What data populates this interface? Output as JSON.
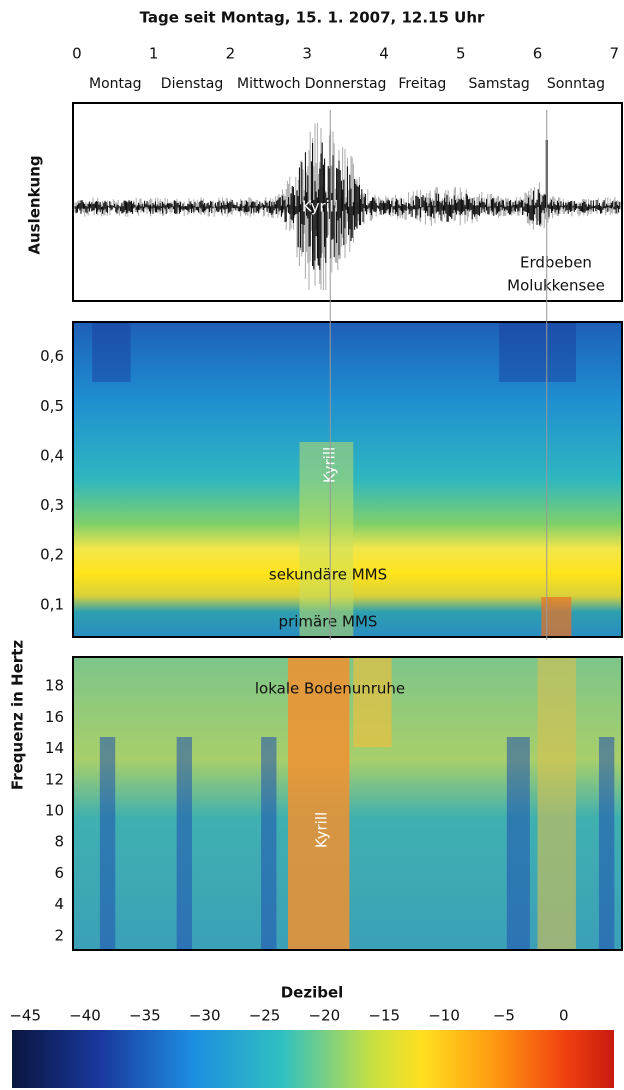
{
  "chart_data": [
    {
      "type": "seismogram",
      "title": "Tage seit Montag, 15. 1. 2007, 12.15 Uhr",
      "xlim": [
        -0.05,
        7.1
      ],
      "xticks": [
        0,
        1,
        2,
        3,
        4,
        5,
        6,
        7
      ],
      "categories": [
        "Montag",
        "Dienstag",
        "Mittwoch",
        "Donnerstag",
        "Freitag",
        "Samstag",
        "Sonntag"
      ],
      "ylabel": "Auslenkung",
      "annotations": [
        "Kyrill",
        [
          "Erdbeben",
          "Molukkensee"
        ]
      ]
    },
    {
      "type": "heatmap",
      "ylim": [
        0.035,
        0.67
      ],
      "yticks": [
        {
          "value": 0.1,
          "label": "0,1"
        },
        {
          "value": 0.2,
          "label": "0,2"
        },
        {
          "value": 0.3,
          "label": "0,3"
        },
        {
          "value": 0.4,
          "label": "0,4"
        },
        {
          "value": 0.5,
          "label": "0,5"
        },
        {
          "value": 0.6,
          "label": "0,6"
        }
      ],
      "ylabel": "Frequenz in Hertz",
      "annotations": [
        "Kyrill",
        "sekundäre MMS",
        "primäre MMS"
      ]
    },
    {
      "type": "heatmap",
      "ylim": [
        1.1,
        19.86
      ],
      "yticks": [
        2,
        4,
        6,
        8,
        10,
        12,
        14,
        16,
        18
      ],
      "annotations": [
        "lokale Bodenunruhe",
        "Kyrill"
      ]
    },
    {
      "type": "colorbar",
      "title": "Dezibel",
      "xlim": [
        -46.1,
        4.2
      ],
      "xticks": [
        {
          "value": -45,
          "label": "−45"
        },
        {
          "value": -40,
          "label": "−40"
        },
        {
          "value": -35,
          "label": "−35"
        },
        {
          "value": -30,
          "label": "−30"
        },
        {
          "value": -25,
          "label": "−25"
        },
        {
          "value": -20,
          "label": "−20"
        },
        {
          "value": -15,
          "label": "−15"
        },
        {
          "value": -10,
          "label": "−10"
        },
        {
          "value": -5,
          "label": "−5"
        },
        0
      ]
    }
  ]
}
